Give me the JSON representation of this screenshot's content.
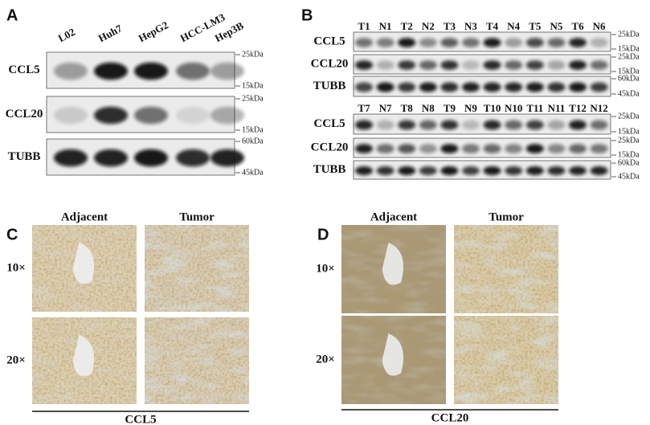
{
  "panel_a": {
    "label": "A",
    "lanes": [
      "L02",
      "Huh7",
      "HepG2",
      "HCC-LM3",
      "Hep3B"
    ],
    "rows": [
      {
        "name": "CCL5",
        "markers": [
          "25kDa",
          "15kDa"
        ]
      },
      {
        "name": "CCL20",
        "markers": [
          "25kDa",
          "15kDa"
        ]
      },
      {
        "name": "TUBB",
        "markers": [
          "60kDa",
          "45kDa"
        ]
      }
    ]
  },
  "panel_b": {
    "label": "B",
    "blots": [
      {
        "lanes": [
          "T1",
          "N1",
          "T2",
          "N2",
          "T3",
          "N3",
          "T4",
          "N4",
          "T5",
          "N5",
          "T6",
          "N6"
        ],
        "rows": [
          {
            "name": "CCL5",
            "markers": [
              "25kDa",
              "15kDa"
            ]
          },
          {
            "name": "CCL20",
            "markers": [
              "25kDa",
              "15kDa"
            ]
          },
          {
            "name": "TUBB",
            "markers": [
              "60kDa",
              "45kDa"
            ]
          }
        ]
      },
      {
        "lanes": [
          "T7",
          "N7",
          "T8",
          "N8",
          "T9",
          "N9",
          "T10",
          "N10",
          "T11",
          "N11",
          "T12",
          "N12"
        ],
        "rows": [
          {
            "name": "CCL5",
            "markers": [
              "25kDa",
              "15kDa"
            ]
          },
          {
            "name": "CCL20",
            "markers": [
              "25kDa",
              "15kDa"
            ]
          },
          {
            "name": "TUBB",
            "markers": [
              "60kDa",
              "45kDa"
            ]
          }
        ]
      }
    ]
  },
  "panel_c": {
    "label": "C",
    "columns": [
      "Adjacent",
      "Tumor"
    ],
    "rows": [
      "10×",
      "20×"
    ],
    "caption": "CCL5"
  },
  "panel_d": {
    "label": "D",
    "columns": [
      "Adjacent",
      "Tumor"
    ],
    "rows": [
      "10×",
      "20×"
    ],
    "caption": "CCL20"
  }
}
